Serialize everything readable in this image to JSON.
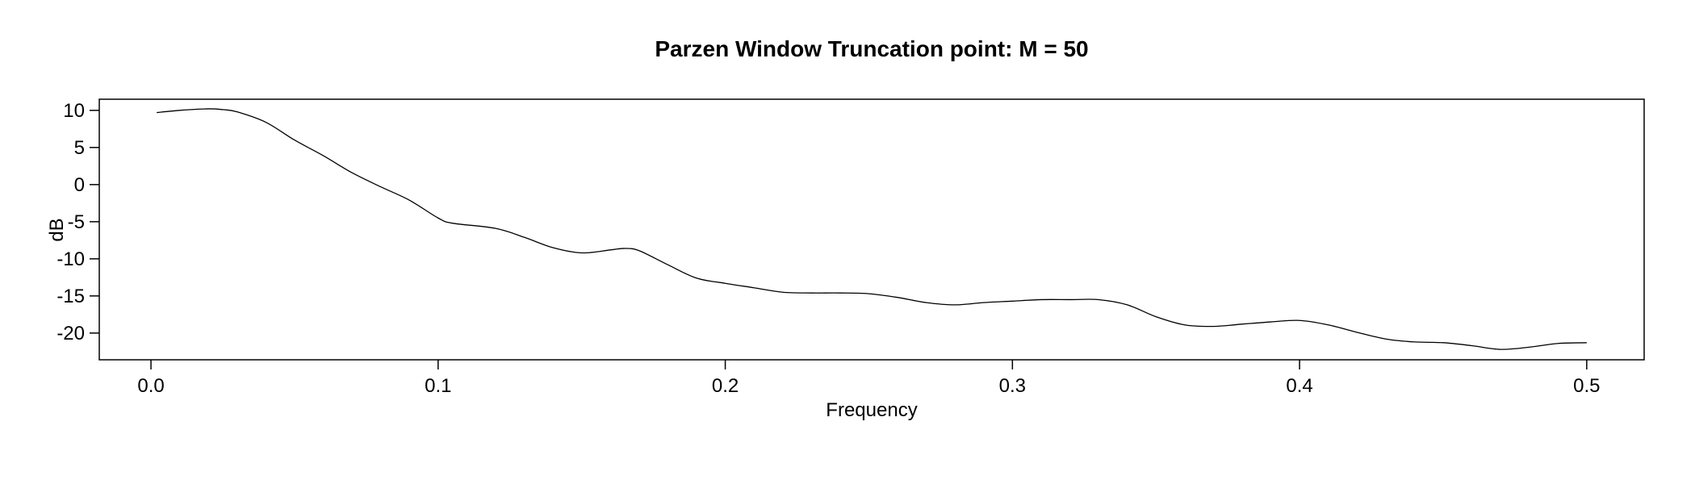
{
  "chart_data": {
    "type": "line",
    "title": "Parzen Window Truncation point: M = 50",
    "xlabel": "Frequency",
    "ylabel": "dB",
    "xlim": [
      -0.018,
      0.52
    ],
    "ylim": [
      -23.6,
      11.5
    ],
    "xticks": [
      0,
      0.1,
      0.2,
      0.3,
      0.4,
      0.5
    ],
    "xtick_labels": [
      "0.0",
      "0.1",
      "0.2",
      "0.3",
      "0.4",
      "0.5"
    ],
    "yticks": [
      10,
      5,
      0,
      -5,
      -10,
      -15,
      -20
    ],
    "ytick_labels": [
      "10",
      "5",
      "0",
      "-5",
      "-10",
      "-15",
      "-20"
    ],
    "grid": false,
    "legend": "none",
    "line_color": "#000000",
    "series": [
      {
        "x": [
          0.002,
          0.01,
          0.02,
          0.025,
          0.03,
          0.04,
          0.05,
          0.06,
          0.07,
          0.08,
          0.09,
          0.1,
          0.105,
          0.12,
          0.13,
          0.14,
          0.15,
          0.16,
          0.165,
          0.17,
          0.18,
          0.19,
          0.2,
          0.21,
          0.22,
          0.23,
          0.24,
          0.25,
          0.26,
          0.27,
          0.28,
          0.29,
          0.3,
          0.31,
          0.32,
          0.33,
          0.34,
          0.35,
          0.36,
          0.37,
          0.38,
          0.39,
          0.4,
          0.41,
          0.42,
          0.43,
          0.44,
          0.45,
          0.46,
          0.47,
          0.48,
          0.49,
          0.5
        ],
        "y": [
          9.7,
          10.0,
          10.2,
          10.1,
          9.8,
          8.4,
          6.0,
          3.9,
          1.6,
          -0.3,
          -2.1,
          -4.5,
          -5.2,
          -5.9,
          -7.1,
          -8.5,
          -9.2,
          -8.8,
          -8.6,
          -8.9,
          -10.8,
          -12.6,
          -13.3,
          -13.9,
          -14.5,
          -14.6,
          -14.6,
          -14.7,
          -15.2,
          -15.9,
          -16.2,
          -15.9,
          -15.7,
          -15.5,
          -15.5,
          -15.5,
          -16.2,
          -17.8,
          -18.9,
          -19.1,
          -18.8,
          -18.5,
          -18.3,
          -18.9,
          -19.9,
          -20.8,
          -21.2,
          -21.3,
          -21.7,
          -22.2,
          -21.9,
          -21.4,
          -21.3
        ]
      }
    ]
  }
}
